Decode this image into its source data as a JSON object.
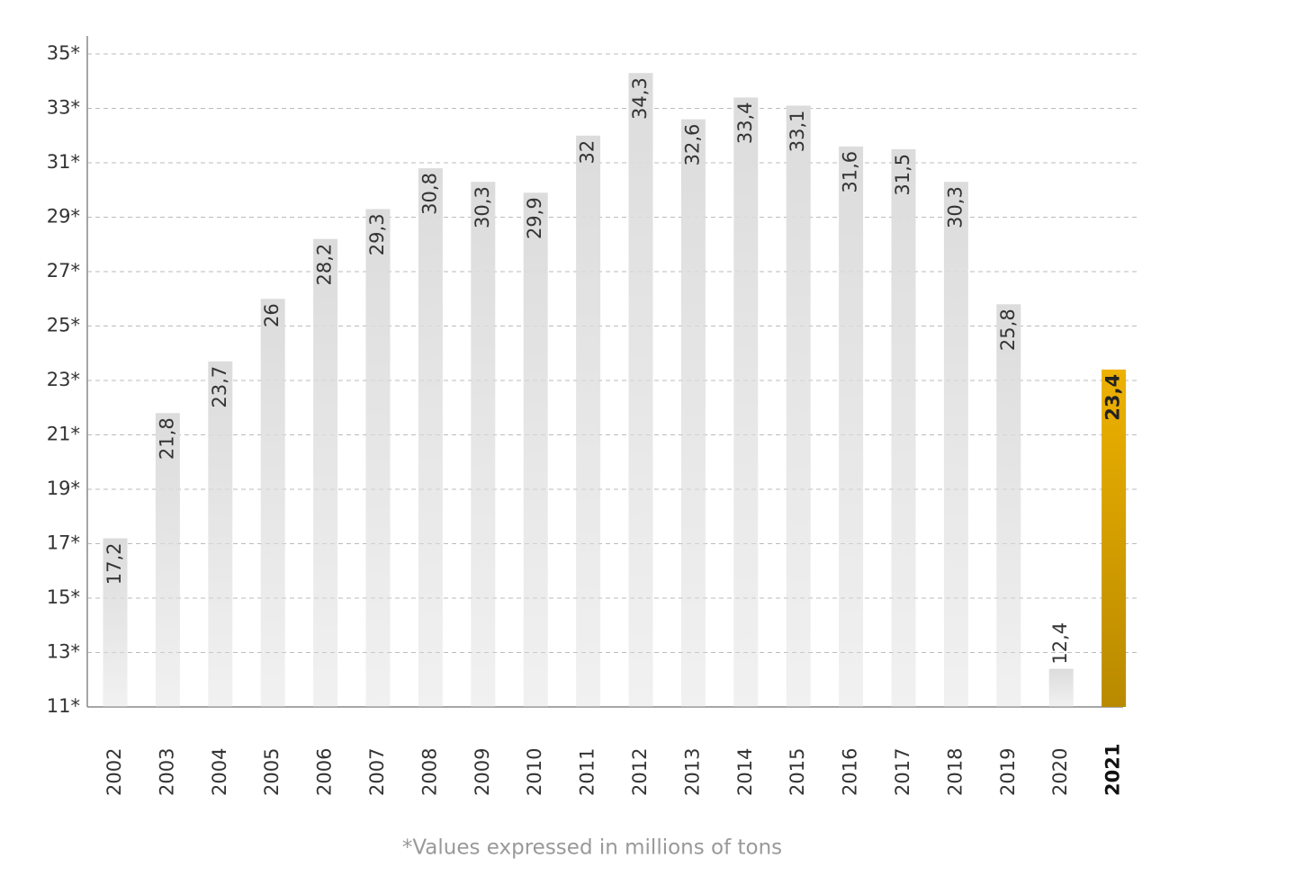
{
  "chart_data": {
    "type": "bar",
    "categories": [
      "2002",
      "2003",
      "2004",
      "2005",
      "2006",
      "2007",
      "2008",
      "2009",
      "2010",
      "2011",
      "2012",
      "2013",
      "2014",
      "2015",
      "2016",
      "2017",
      "2018",
      "2019",
      "2020",
      "2021"
    ],
    "values": [
      17.2,
      21.8,
      23.7,
      26,
      28.2,
      29.3,
      30.8,
      30.3,
      29.9,
      32,
      34.3,
      32.6,
      33.4,
      33.1,
      31.6,
      31.5,
      30.3,
      25.8,
      12.4,
      23.4
    ],
    "value_labels": [
      "17,2",
      "21,8",
      "23,7",
      "26",
      "28,2",
      "29,3",
      "30,8",
      "30,3",
      "29,9",
      "32",
      "34,3",
      "32,6",
      "33,4",
      "33,1",
      "31,6",
      "31,5",
      "30,3",
      "25,8",
      "12,4",
      "23,4"
    ],
    "color": "#dcdcdc",
    "highlight": {
      "index": 19,
      "color": "#edb100"
    },
    "ylim": [
      11,
      35
    ],
    "yticks": [
      {
        "value": 11,
        "label": "11*"
      },
      {
        "value": 13,
        "label": "13*"
      },
      {
        "value": 15,
        "label": "15*"
      },
      {
        "value": 17,
        "label": "17*"
      },
      {
        "value": 19,
        "label": "19*"
      },
      {
        "value": 21,
        "label": "21*"
      },
      {
        "value": 23,
        "label": "23*"
      },
      {
        "value": 25,
        "label": "25*"
      },
      {
        "value": 27,
        "label": "27*"
      },
      {
        "value": 29,
        "label": "29*"
      },
      {
        "value": 31,
        "label": "31*"
      },
      {
        "value": 33,
        "label": "33*"
      },
      {
        "value": 35,
        "label": "35*"
      }
    ],
    "grid": true,
    "note": "*Values expressed in millions of tons"
  }
}
